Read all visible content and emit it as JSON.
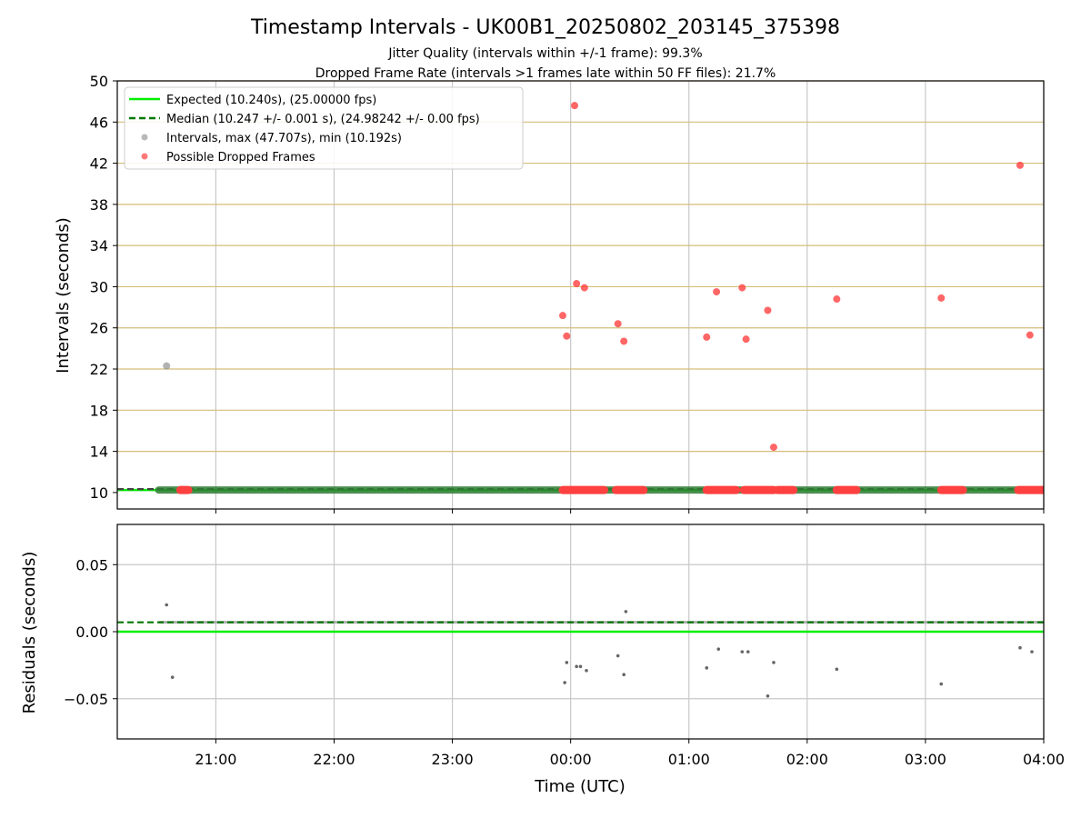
{
  "figure": {
    "title": "Timestamp Intervals - UK00B1_20250802_203145_375398",
    "subtitle_1": "Jitter Quality (intervals within +/-1 frame): 99.3%",
    "subtitle_2": "Dropped Frame Rate (intervals >1 frames late within 50 FF files): 21.7%"
  },
  "colors": {
    "expected": "#00ee00",
    "median": "#007700",
    "intervals": "#888888",
    "dropped": "#ff4040",
    "horizontal_grid": "#d4be7a",
    "vertical_grid": "#c8c8c8",
    "band": "#2e7d32"
  },
  "chart_data": [
    {
      "type": "scatter",
      "ylabel": "Intervals (seconds)",
      "xlim": [
        "20:10",
        "04:00"
      ],
      "ylim": [
        8.4,
        50
      ],
      "y_ticks": [
        "10",
        "14",
        "18",
        "22",
        "26",
        "30",
        "34",
        "38",
        "42",
        "46",
        "50"
      ],
      "grid": "on",
      "legend_position": "top-left",
      "legend": [
        {
          "label": "Expected (10.240s), (25.00000 fps)",
          "style": "solid-line"
        },
        {
          "label": "Median (10.247 +/- 0.001 s), (24.98242 +/- 0.00 fps)",
          "style": "dashed-line"
        },
        {
          "label": "Intervals, max (47.707s), min (10.192s)",
          "style": "gray-dot"
        },
        {
          "label": "Possible Dropped Frames",
          "style": "red-dot"
        }
      ],
      "expected_value": 10.24,
      "median_value": 10.247,
      "intervals_outliers": [
        {
          "x": "20:35",
          "y": 22.3
        }
      ],
      "nominal_band": {
        "start": "20:31",
        "end": "04:00",
        "y": 10.24
      },
      "dropped_frames_at_nominal": [
        [
          "20:42",
          "20:46"
        ],
        [
          "23:56",
          "00:17"
        ],
        [
          "00:23",
          "00:37"
        ],
        [
          "01:09",
          "01:24"
        ],
        [
          "01:28",
          "01:43"
        ],
        [
          "01:45",
          "01:53"
        ],
        [
          "02:15",
          "02:25"
        ],
        [
          "03:08",
          "03:19"
        ],
        [
          "03:47",
          "04:00"
        ]
      ],
      "dropped_frames": [
        {
          "x": "23:56",
          "y": 27.2
        },
        {
          "x": "23:58",
          "y": 25.2
        },
        {
          "x": "00:02",
          "y": 47.6
        },
        {
          "x": "00:03",
          "y": 30.3
        },
        {
          "x": "00:07",
          "y": 29.9
        },
        {
          "x": "00:24",
          "y": 26.4
        },
        {
          "x": "00:27",
          "y": 24.7
        },
        {
          "x": "01:09",
          "y": 25.1
        },
        {
          "x": "01:14",
          "y": 29.5
        },
        {
          "x": "01:27",
          "y": 29.9
        },
        {
          "x": "01:29",
          "y": 24.9
        },
        {
          "x": "01:40",
          "y": 27.7
        },
        {
          "x": "01:43",
          "y": 14.4
        },
        {
          "x": "02:15",
          "y": 28.8
        },
        {
          "x": "03:08",
          "y": 28.9
        },
        {
          "x": "03:48",
          "y": 41.8
        },
        {
          "x": "03:53",
          "y": 25.3
        }
      ]
    },
    {
      "type": "scatter",
      "xlabel": "Time (UTC)",
      "ylabel": "Residuals (seconds)",
      "xlim": [
        "20:10",
        "04:00"
      ],
      "ylim": [
        -0.08,
        0.08
      ],
      "x_ticks": [
        "21:00",
        "22:00",
        "23:00",
        "00:00",
        "01:00",
        "02:00",
        "03:00",
        "04:00"
      ],
      "y_ticks": [
        "0.05",
        "0.00",
        "−0.05"
      ],
      "grid": "on",
      "expected_value": 0.0,
      "median_value": 0.007,
      "residual_outliers": [
        {
          "x": "20:35",
          "y": 0.02
        },
        {
          "x": "20:38",
          "y": -0.034
        },
        {
          "x": "23:57",
          "y": -0.038
        },
        {
          "x": "23:58",
          "y": -0.023
        },
        {
          "x": "00:03",
          "y": -0.026
        },
        {
          "x": "00:05",
          "y": -0.026
        },
        {
          "x": "00:08",
          "y": -0.029
        },
        {
          "x": "00:24",
          "y": -0.018
        },
        {
          "x": "00:27",
          "y": -0.032
        },
        {
          "x": "00:28",
          "y": 0.015
        },
        {
          "x": "01:09",
          "y": -0.027
        },
        {
          "x": "01:15",
          "y": -0.013
        },
        {
          "x": "01:27",
          "y": -0.015
        },
        {
          "x": "01:30",
          "y": -0.015
        },
        {
          "x": "01:40",
          "y": -0.048
        },
        {
          "x": "01:43",
          "y": -0.023
        },
        {
          "x": "02:15",
          "y": -0.028
        },
        {
          "x": "03:08",
          "y": -0.039
        },
        {
          "x": "03:48",
          "y": -0.012
        },
        {
          "x": "03:54",
          "y": -0.015
        }
      ]
    }
  ]
}
